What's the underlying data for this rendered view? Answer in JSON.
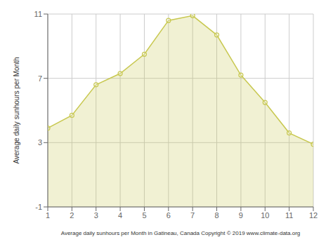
{
  "chart_data": {
    "type": "area",
    "x": [
      1,
      2,
      3,
      4,
      5,
      6,
      7,
      8,
      9,
      10,
      11,
      12
    ],
    "values": [
      3.9,
      4.7,
      6.6,
      7.3,
      8.5,
      10.6,
      10.9,
      9.7,
      7.2,
      5.5,
      3.6,
      2.9
    ],
    "color": "#c8c850",
    "marker": "circle",
    "xlabel": "Average daily sunhours per Month in Gatineau, Canada Copyright © 2019 www.climate-data.org",
    "ylabel": "Average daily sunhours per Month",
    "xlim": [
      1,
      12
    ],
    "ylim": [
      -1,
      11
    ],
    "xticks": [
      1,
      2,
      3,
      4,
      5,
      6,
      7,
      8,
      9,
      10,
      11,
      12
    ],
    "yticks": [
      -1,
      3,
      7,
      11
    ],
    "grid": true
  }
}
